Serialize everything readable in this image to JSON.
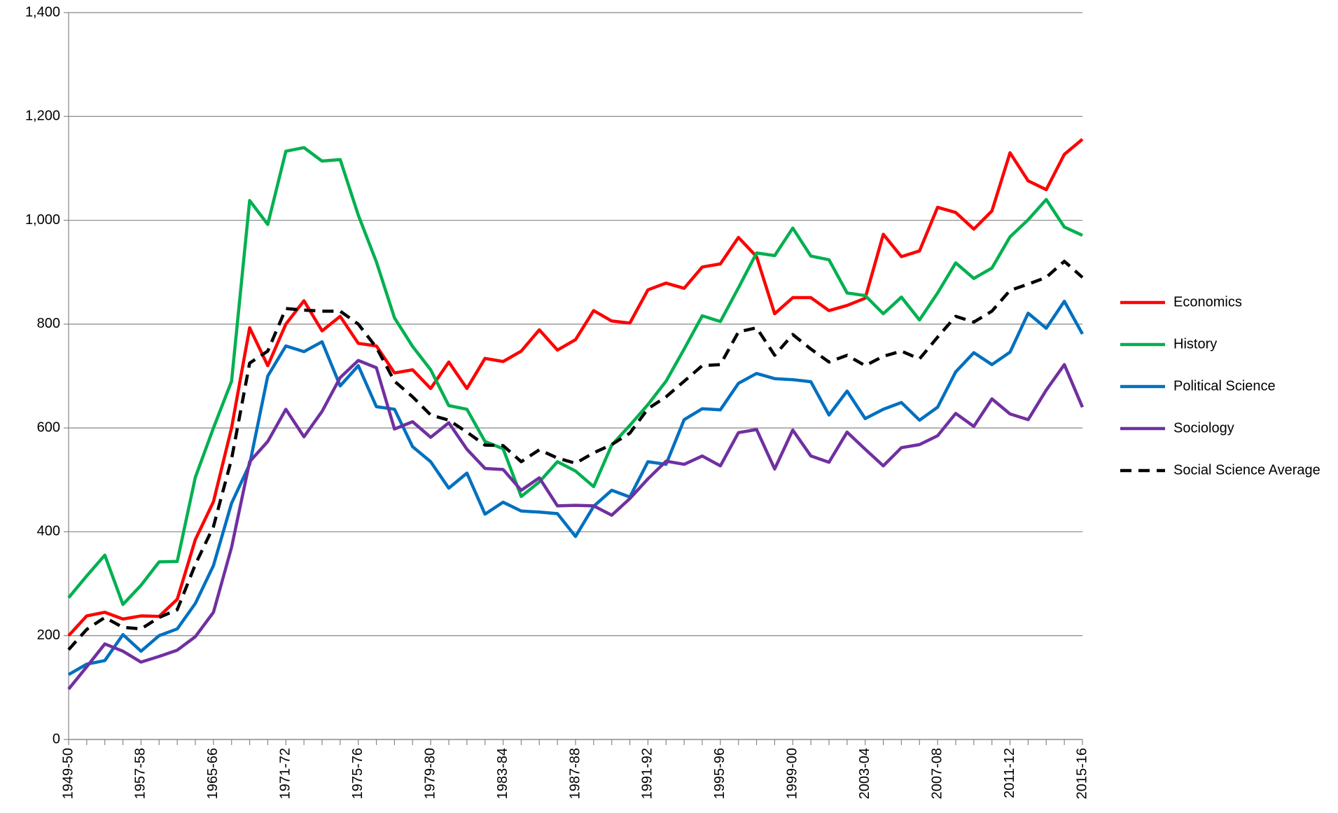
{
  "chart_data": {
    "type": "line",
    "categories": [
      "1949-50",
      null,
      null,
      null,
      "1957-58",
      null,
      null,
      null,
      "1965-66",
      null,
      null,
      null,
      "1971-72",
      null,
      null,
      null,
      "1975-76",
      null,
      null,
      null,
      "1979-80",
      null,
      null,
      null,
      "1983-84",
      null,
      null,
      null,
      "1987-88",
      null,
      null,
      null,
      "1991-92",
      null,
      null,
      null,
      "1995-96",
      null,
      null,
      null,
      "1999-00",
      null,
      null,
      null,
      "2003-04",
      null,
      null,
      null,
      "2007-08",
      null,
      null,
      null,
      "2011-12",
      null,
      null,
      null,
      "2015-16"
    ],
    "series": [
      {
        "name": "Economics",
        "color": "#ff0000",
        "dashed": false,
        "values": [
          200,
          238,
          245,
          232,
          238,
          237,
          270,
          385,
          458,
          600,
          793,
          720,
          800,
          845,
          787,
          815,
          763,
          758,
          706,
          712,
          676,
          727,
          676,
          734,
          728,
          748,
          789,
          750,
          770,
          826,
          806,
          802,
          866,
          879,
          869,
          910,
          916,
          967,
          930,
          820,
          851,
          851,
          826,
          836,
          850,
          973,
          930,
          941,
          1025,
          1015,
          983,
          1018,
          1130,
          1076,
          1059,
          1127,
          1156
        ]
      },
      {
        "name": "History",
        "color": "#00b050",
        "dashed": false,
        "values": [
          273,
          315,
          355,
          260,
          297,
          342,
          343,
          505,
          600,
          690,
          1038,
          992,
          1133,
          1140,
          1114,
          1117,
          1010,
          920,
          812,
          757,
          712,
          643,
          636,
          574,
          560,
          468,
          496,
          535,
          517,
          487,
          567,
          605,
          645,
          690,
          752,
          816,
          805,
          870,
          937,
          932,
          985,
          931,
          924,
          860,
          855,
          820,
          852,
          808,
          860,
          918,
          888,
          908,
          968,
          1001,
          1040,
          987,
          971
        ]
      },
      {
        "name": "Political Science",
        "color": "#0070c0",
        "dashed": false,
        "values": [
          125,
          145,
          152,
          202,
          170,
          200,
          213,
          262,
          335,
          455,
          530,
          700,
          758,
          747,
          766,
          681,
          720,
          641,
          636,
          564,
          535,
          484,
          513,
          434,
          457,
          440,
          438,
          435,
          391,
          449,
          480,
          467,
          535,
          530,
          616,
          637,
          635,
          686,
          705,
          695,
          693,
          689,
          625,
          671,
          618,
          636,
          649,
          615,
          640,
          708,
          745,
          722,
          746,
          821,
          792,
          844,
          781
        ]
      },
      {
        "name": "Sociology",
        "color": "#7030a0",
        "dashed": false,
        "values": [
          97,
          140,
          184,
          170,
          149,
          160,
          172,
          198,
          245,
          370,
          535,
          574,
          636,
          583,
          632,
          697,
          730,
          716,
          598,
          612,
          582,
          610,
          559,
          522,
          520,
          480,
          504,
          450,
          451,
          450,
          432,
          464,
          502,
          536,
          530,
          546,
          527,
          591,
          597,
          521,
          596,
          546,
          534,
          592,
          559,
          527,
          562,
          568,
          585,
          628,
          603,
          656,
          627,
          616,
          673,
          722,
          640
        ]
      },
      {
        "name": "Social Science Average",
        "color": "#000000",
        "dashed": true,
        "values": [
          173,
          212,
          235,
          216,
          213,
          235,
          250,
          337,
          410,
          540,
          725,
          748,
          830,
          827,
          825,
          825,
          800,
          755,
          690,
          660,
          625,
          615,
          592,
          567,
          566,
          535,
          558,
          542,
          532,
          552,
          568,
          590,
          637,
          660,
          690,
          720,
          722,
          785,
          793,
          740,
          780,
          752,
          727,
          740,
          720,
          738,
          748,
          733,
          775,
          815,
          804,
          825,
          865,
          877,
          890,
          921,
          890
        ]
      }
    ],
    "ylim": [
      0,
      1400
    ],
    "yticks": [
      0,
      200,
      400,
      600,
      800,
      {
        "value": 1000,
        "label": "1,000"
      },
      {
        "value": 1200,
        "label": "1,200"
      },
      {
        "value": 1400,
        "label": "1,400"
      }
    ],
    "grid": true,
    "legend": "right"
  }
}
